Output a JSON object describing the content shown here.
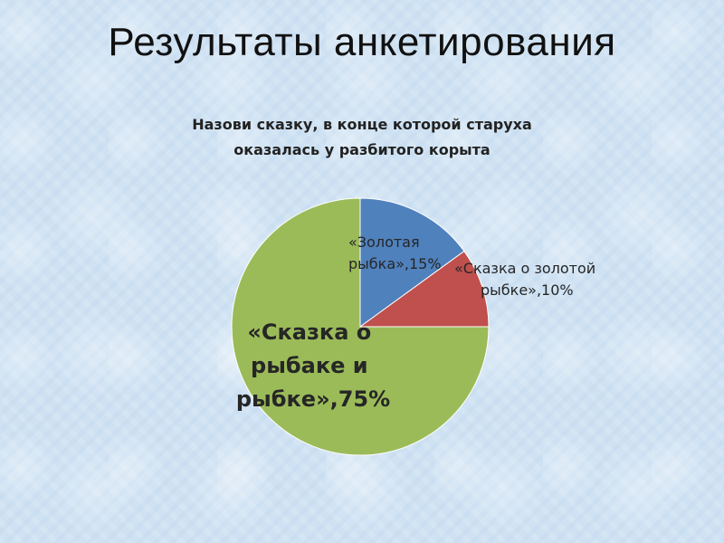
{
  "slide": {
    "title": "Результаты анкетирования"
  },
  "chart_data": {
    "type": "pie",
    "title_lines": [
      "Назови сказку, в конце которой старуха",
      "оказалась у разбитого корыта"
    ],
    "slices": [
      {
        "label_lines": [
          "«Золотая",
          "рыбка»,15%"
        ],
        "value": 15,
        "color": "#4f81bd"
      },
      {
        "label_lines": [
          "«Сказка о золотой",
          "рыбке»,10%"
        ],
        "value": 10,
        "color": "#c0504d"
      },
      {
        "label_lines": [
          "«Сказка о",
          "рыбаке и",
          "рыбке»,75%"
        ],
        "value": 75,
        "color": "#9bbb59"
      }
    ],
    "start_angle_deg": 0,
    "direction": "clockwise",
    "legend": "none"
  }
}
